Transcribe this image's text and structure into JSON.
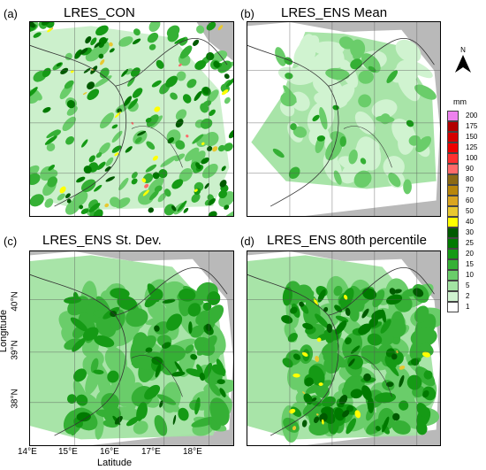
{
  "panels": [
    {
      "id": "a",
      "label": "(a)",
      "title": "LRES_CON"
    },
    {
      "id": "b",
      "label": "(b)",
      "title": "LRES_ENS Mean"
    },
    {
      "id": "c",
      "label": "(c)",
      "title": "LRES_ENS St. Dev."
    },
    {
      "id": "d",
      "label": "(d)",
      "title": "LRES_ENS 80th percentile"
    }
  ],
  "axes": {
    "x_title": "Latitude",
    "y_title": "Longitude",
    "x_ticks": [
      "14°E",
      "15°E",
      "16°E",
      "17°E",
      "18°E"
    ],
    "y_ticks": [
      "40°N",
      "39°N",
      "38°N"
    ]
  },
  "north_arrow": {
    "label": "N"
  },
  "legend": {
    "unit": "mm",
    "levels": [
      {
        "label": "200",
        "color": "#ee82ee"
      },
      {
        "label": "175",
        "color": "#b30000"
      },
      {
        "label": "150",
        "color": "#d40000"
      },
      {
        "label": "125",
        "color": "#ee0000"
      },
      {
        "label": "100",
        "color": "#ff3030"
      },
      {
        "label": "90",
        "color": "#ff6a6a"
      },
      {
        "label": "80",
        "color": "#8b6914"
      },
      {
        "label": "70",
        "color": "#b8860b"
      },
      {
        "label": "60",
        "color": "#daa520"
      },
      {
        "label": "50",
        "color": "#e8c830"
      },
      {
        "label": "40",
        "color": "#ffff00"
      },
      {
        "label": "30",
        "color": "#005a00"
      },
      {
        "label": "25",
        "color": "#007a00"
      },
      {
        "label": "20",
        "color": "#159a15"
      },
      {
        "label": "15",
        "color": "#35b035"
      },
      {
        "label": "10",
        "color": "#6acd6a"
      },
      {
        "label": "5",
        "color": "#a3e3a3"
      },
      {
        "label": "2",
        "color": "#d0f3d0"
      },
      {
        "label": "1",
        "color": "#ffffff"
      }
    ]
  }
}
